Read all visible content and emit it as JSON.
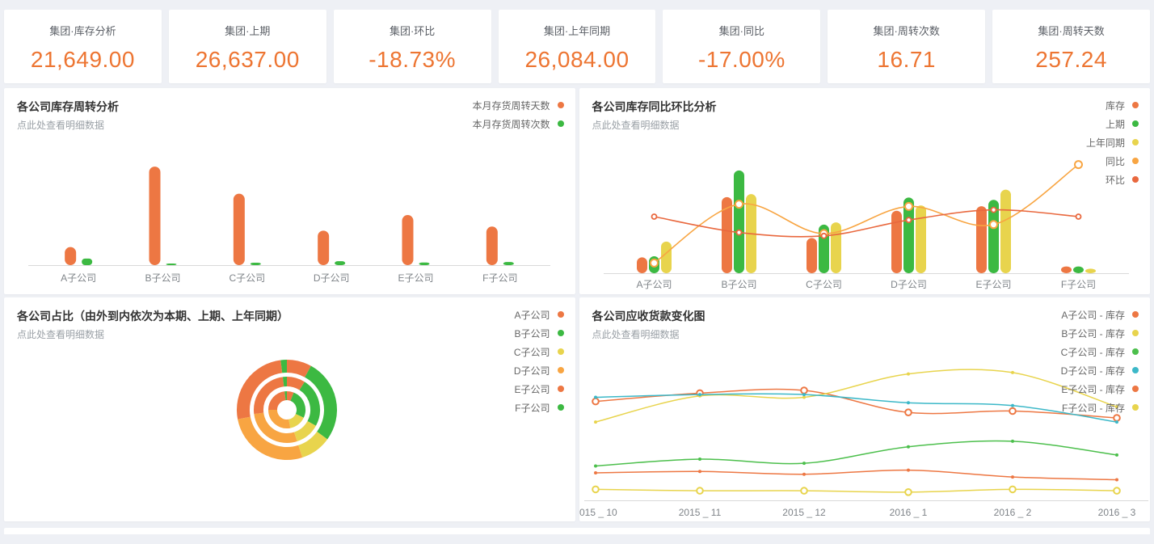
{
  "kpi_cards": [
    {
      "title": "集团·库存分析",
      "value": "21,649.00"
    },
    {
      "title": "集团·上期",
      "value": "26,637.00"
    },
    {
      "title": "集团·环比",
      "value": "-18.73%"
    },
    {
      "title": "集团·上年同期",
      "value": "26,084.00"
    },
    {
      "title": "集团·同比",
      "value": "-17.00%"
    },
    {
      "title": "集团·周转次数",
      "value": "16.71"
    },
    {
      "title": "集团·周转天数",
      "value": "257.24"
    }
  ],
  "colors": {
    "orange": "#ed7743",
    "green": "#3cb942",
    "yellow": "#e8d44d",
    "light_orange": "#f8a542",
    "teal": "#3cb8c8",
    "red_orange": "#e9683e",
    "kpi_value": "#ed7532",
    "background": "#eef0f5",
    "panel": "#ffffff",
    "axis_line": "#d9d9d9",
    "axis_text": "#7f8489"
  },
  "chart_data": [
    {
      "id": "turnover",
      "type": "bar",
      "title": "各公司库存周转分析",
      "subtitle": "点此处查看明细数据",
      "categories": [
        "A子公司",
        "B子公司",
        "C子公司",
        "D子公司",
        "E子公司",
        "F子公司"
      ],
      "series": [
        {
          "name": "本月存货周转天数",
          "color": "#ed7743",
          "values": [
            110,
            600,
            435,
            210,
            305,
            235
          ]
        },
        {
          "name": "本月存货周转次数",
          "color": "#3cb942",
          "values": [
            40,
            10,
            15,
            24,
            16,
            19
          ]
        }
      ],
      "ylim": [
        0,
        640
      ],
      "grid": false,
      "legend_position": "top-right",
      "note": "no y-axis labels shown; values estimated from bar heights"
    },
    {
      "id": "yoy",
      "type": "bar+line",
      "title": "各公司库存同比环比分析",
      "subtitle": "点此处查看明细数据",
      "categories": [
        "A子公司",
        "B子公司",
        "C子公司",
        "D子公司",
        "E子公司",
        "F子公司"
      ],
      "bar_series": [
        {
          "name": "库存",
          "color": "#ed7743",
          "values": [
            1306,
            6251,
            2893,
            5132,
            5505,
            560
          ]
        },
        {
          "name": "上期",
          "color": "#3cb942",
          "values": [
            1392,
            8445,
            3990,
            6217,
            6032,
            557
          ]
        },
        {
          "name": "上年同期",
          "color": "#e8d44d",
          "values": [
            2599,
            6498,
            4177,
            5570,
            6869,
            371
          ]
        }
      ],
      "line_series": [
        {
          "name": "同比",
          "color": "#f8a542",
          "values_pct": [
            9,
            61,
            35,
            59,
            43,
            96
          ]
        },
        {
          "name": "环比",
          "color": "#e9683e",
          "values_pct": [
            50,
            36,
            33,
            47,
            56,
            50
          ]
        }
      ],
      "ylim": [
        0,
        9300
      ],
      "grid": false,
      "legend_position": "top-right",
      "note": "line values are relative heights 0-100; no secondary axis labels shown"
    },
    {
      "id": "share",
      "type": "pie",
      "title": "各公司占比（由外到内依次为本期、上期、上年同期）",
      "subtitle": "点此处查看明细数据",
      "legend": [
        "A子公司",
        "B子公司",
        "C子公司",
        "D子公司",
        "E子公司",
        "F子公司"
      ],
      "colors": [
        "#ed7743",
        "#3cb942",
        "#e8d44d",
        "#f8a542",
        "#ed7743",
        "#3cb942"
      ],
      "rings": [
        {
          "name": "本期",
          "shares_pct": [
            8,
            27,
            10,
            27,
            26,
            2
          ]
        },
        {
          "name": "上期",
          "shares_pct": [
            9,
            24,
            12,
            28,
            25,
            2
          ]
        },
        {
          "name": "上年同期",
          "shares_pct": [
            6,
            26,
            15,
            28,
            23,
            2
          ]
        }
      ],
      "legend_position": "top-right"
    },
    {
      "id": "receivables",
      "type": "line",
      "title": "各公司应收货款变化图",
      "subtitle": "点此处查看明细数据",
      "x": [
        "2015 _ 10",
        "2015 _ 11",
        "2015 _ 12",
        "2016 _ 1",
        "2016 _ 2",
        "2016 _ 3"
      ],
      "series": [
        {
          "name": "A子公司 - 库存",
          "color": "#ed7743",
          "marker": "ring",
          "values_pct": [
            72,
            78,
            80,
            64,
            65,
            60
          ]
        },
        {
          "name": "B子公司 - 库存",
          "color": "#e8d44d",
          "marker": "dot",
          "values_pct": [
            57,
            76,
            75,
            92,
            93,
            68
          ]
        },
        {
          "name": "C子公司 - 库存",
          "color": "#4cbf4c",
          "marker": "dot",
          "values_pct": [
            25,
            30,
            27,
            39,
            43,
            33
          ]
        },
        {
          "name": "D子公司 - 库存",
          "color": "#3cb8c8",
          "marker": "dot",
          "values_pct": [
            75,
            77,
            77,
            71,
            69,
            57
          ]
        },
        {
          "name": "E子公司 - 库存",
          "color": "#ed7743",
          "marker": "dot",
          "values_pct": [
            20,
            21,
            19,
            22,
            17,
            15
          ]
        },
        {
          "name": "F子公司 - 库存",
          "color": "#e8d44d",
          "marker": "ring",
          "values_pct": [
            8,
            7,
            7,
            6,
            8,
            7
          ]
        }
      ],
      "y_scale": "relative 0-100 (no y-axis labels shown)",
      "grid": false,
      "legend_position": "top-right"
    }
  ]
}
